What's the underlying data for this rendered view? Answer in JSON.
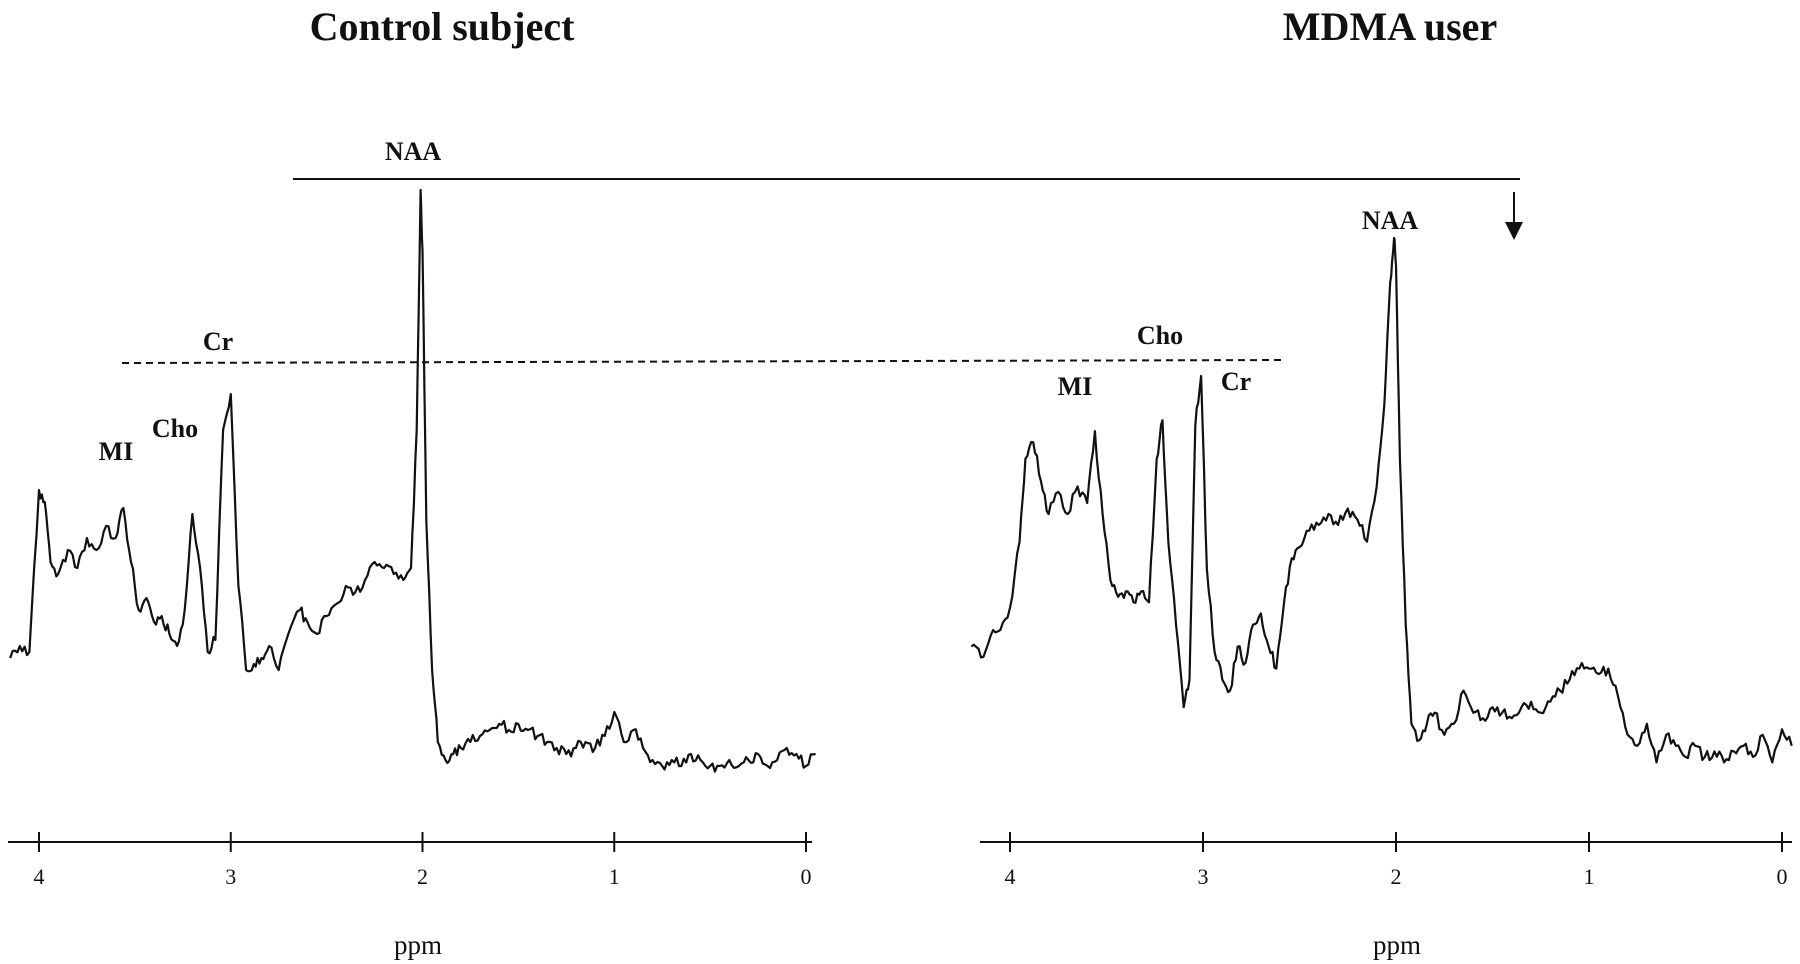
{
  "chart_data": [
    {
      "type": "line",
      "title": "Control subject",
      "xlabel": "ppm",
      "ylabel": "",
      "xlim": [
        4.2,
        -0.1
      ],
      "x_reversed": true,
      "xticks": [
        "4",
        "3",
        "2",
        "1",
        "0"
      ],
      "series": [
        {
          "x": [
            4.15,
            4.1,
            4.05,
            4.0,
            3.97,
            3.94,
            3.9,
            3.85,
            3.8,
            3.75,
            3.7,
            3.65,
            3.6,
            3.56,
            3.52,
            3.48,
            3.44,
            3.4,
            3.36,
            3.32,
            3.28,
            3.24,
            3.2,
            3.16,
            3.12,
            3.08,
            3.04,
            3.0,
            2.96,
            2.92,
            2.88,
            2.84,
            2.8,
            2.75,
            2.7,
            2.64,
            2.6,
            2.55,
            2.5,
            2.45,
            2.4,
            2.35,
            2.3,
            2.25,
            2.2,
            2.15,
            2.1,
            2.06,
            2.03,
            2.01,
            2.0,
            1.98,
            1.95,
            1.92,
            1.88,
            1.84,
            1.8,
            1.75,
            1.7,
            1.65,
            1.6,
            1.55,
            1.5,
            1.45,
            1.4,
            1.35,
            1.3,
            1.25,
            1.2,
            1.15,
            1.1,
            1.05,
            1.0,
            0.95,
            0.9,
            0.85,
            0.8,
            0.75,
            0.7,
            0.65,
            0.6,
            0.55,
            0.5,
            0.45,
            0.4,
            0.35,
            0.3,
            0.25,
            0.2,
            0.15,
            0.1,
            0.05,
            0.0,
            -0.05
          ],
          "y": [
            0.22,
            0.24,
            0.23,
            0.5,
            0.48,
            0.38,
            0.36,
            0.4,
            0.37,
            0.42,
            0.4,
            0.44,
            0.42,
            0.47,
            0.38,
            0.3,
            0.32,
            0.28,
            0.29,
            0.26,
            0.24,
            0.3,
            0.46,
            0.37,
            0.23,
            0.25,
            0.6,
            0.66,
            0.34,
            0.2,
            0.21,
            0.22,
            0.24,
            0.2,
            0.26,
            0.3,
            0.28,
            0.26,
            0.29,
            0.31,
            0.34,
            0.33,
            0.35,
            0.38,
            0.37,
            0.36,
            0.35,
            0.37,
            0.6,
            1.0,
            0.9,
            0.45,
            0.2,
            0.08,
            0.05,
            0.06,
            0.07,
            0.08,
            0.09,
            0.1,
            0.11,
            0.1,
            0.11,
            0.1,
            0.09,
            0.08,
            0.07,
            0.06,
            0.07,
            0.08,
            0.07,
            0.09,
            0.13,
            0.08,
            0.1,
            0.07,
            0.05,
            0.04,
            0.05,
            0.04,
            0.06,
            0.05,
            0.04,
            0.04,
            0.05,
            0.04,
            0.05,
            0.06,
            0.04,
            0.05,
            0.07,
            0.06,
            0.04,
            0.06
          ]
        }
      ],
      "annotations": [
        "Cr",
        "Cho",
        "MI",
        "NAA"
      ]
    },
    {
      "type": "line",
      "title": "MDMA user",
      "xlabel": "ppm",
      "ylabel": "",
      "xlim": [
        4.2,
        -0.1
      ],
      "x_reversed": true,
      "xticks": [
        "4",
        "3",
        "2",
        "1",
        "0"
      ],
      "series": [
        {
          "x": [
            4.2,
            4.15,
            4.1,
            4.05,
            4.0,
            3.95,
            3.92,
            3.88,
            3.84,
            3.8,
            3.75,
            3.7,
            3.65,
            3.6,
            3.56,
            3.52,
            3.48,
            3.44,
            3.4,
            3.36,
            3.32,
            3.28,
            3.24,
            3.21,
            3.18,
            3.14,
            3.1,
            3.07,
            3.04,
            3.01,
            2.98,
            2.94,
            2.9,
            2.86,
            2.82,
            2.78,
            2.74,
            2.7,
            2.66,
            2.62,
            2.58,
            2.54,
            2.5,
            2.45,
            2.4,
            2.35,
            2.3,
            2.25,
            2.2,
            2.15,
            2.1,
            2.06,
            2.03,
            2.01,
            2.0,
            1.98,
            1.95,
            1.92,
            1.88,
            1.84,
            1.8,
            1.75,
            1.7,
            1.65,
            1.6,
            1.55,
            1.5,
            1.45,
            1.4,
            1.35,
            1.3,
            1.25,
            1.2,
            1.15,
            1.1,
            1.05,
            1.0,
            0.95,
            0.9,
            0.85,
            0.8,
            0.75,
            0.7,
            0.65,
            0.6,
            0.55,
            0.5,
            0.45,
            0.4,
            0.35,
            0.3,
            0.25,
            0.2,
            0.15,
            0.1,
            0.05,
            0.0,
            -0.05
          ],
          "y": [
            0.26,
            0.24,
            0.28,
            0.29,
            0.33,
            0.45,
            0.6,
            0.63,
            0.56,
            0.5,
            0.54,
            0.5,
            0.55,
            0.52,
            0.65,
            0.5,
            0.38,
            0.35,
            0.36,
            0.34,
            0.36,
            0.34,
            0.6,
            0.67,
            0.45,
            0.3,
            0.15,
            0.2,
            0.66,
            0.75,
            0.4,
            0.25,
            0.2,
            0.18,
            0.26,
            0.23,
            0.3,
            0.32,
            0.26,
            0.22,
            0.34,
            0.42,
            0.44,
            0.47,
            0.48,
            0.5,
            0.48,
            0.51,
            0.49,
            0.45,
            0.55,
            0.7,
            0.92,
            1.0,
            0.95,
            0.6,
            0.3,
            0.12,
            0.09,
            0.12,
            0.14,
            0.1,
            0.12,
            0.18,
            0.14,
            0.13,
            0.15,
            0.14,
            0.13,
            0.15,
            0.16,
            0.14,
            0.16,
            0.18,
            0.2,
            0.22,
            0.22,
            0.21,
            0.22,
            0.17,
            0.1,
            0.08,
            0.12,
            0.05,
            0.1,
            0.08,
            0.06,
            0.08,
            0.06,
            0.07,
            0.05,
            0.07,
            0.08,
            0.06,
            0.1,
            0.05,
            0.11,
            0.08
          ]
        }
      ],
      "annotations": [
        "Cho",
        "Cr",
        "MI",
        "NAA"
      ]
    }
  ]
}
